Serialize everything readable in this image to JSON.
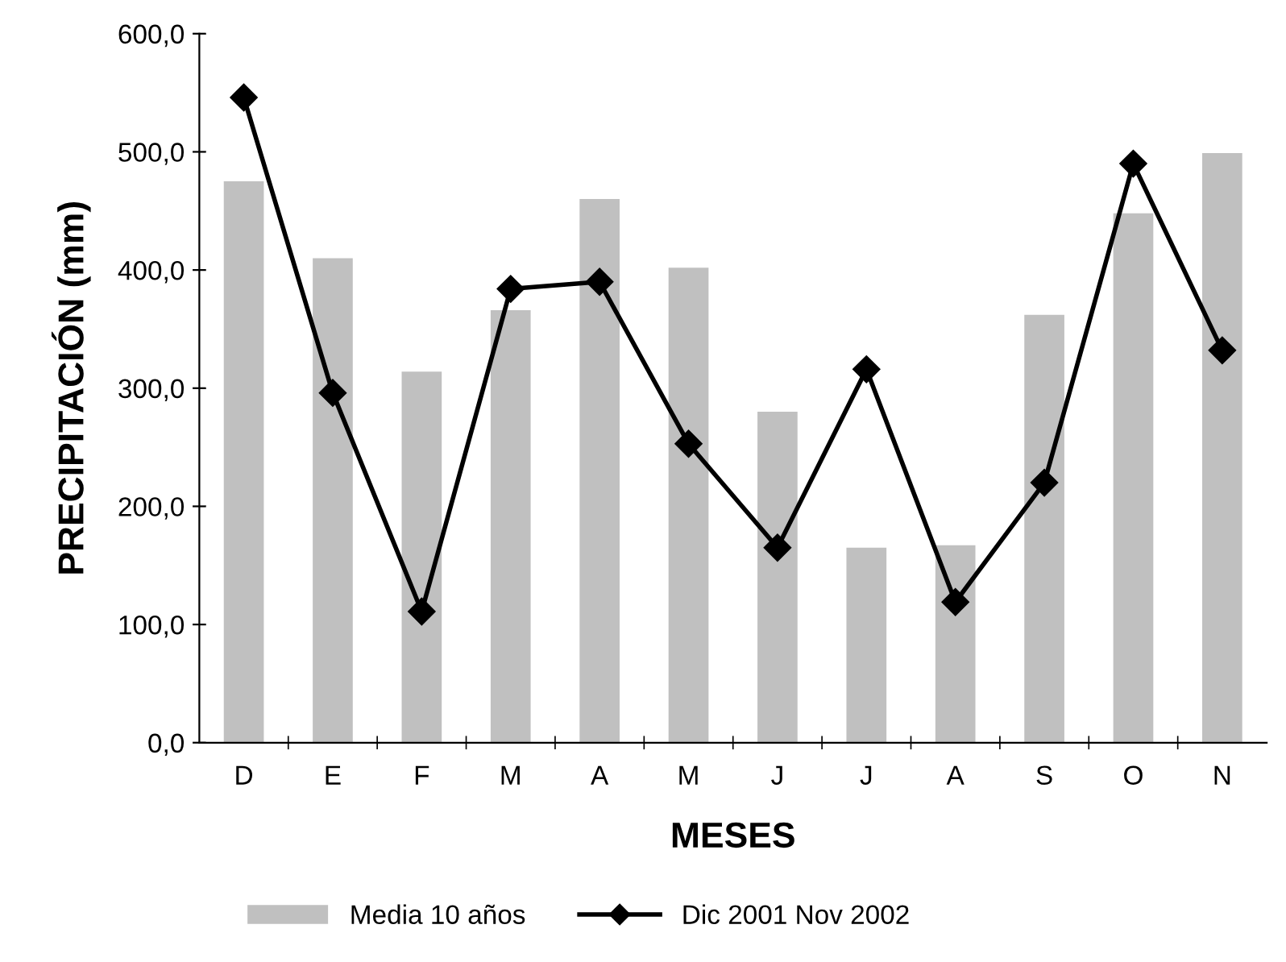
{
  "chart_data": {
    "type": "bar",
    "xlabel": "MESES",
    "ylabel": "PRECIPITACIÓN (mm)",
    "categories": [
      "D",
      "E",
      "F",
      "M",
      "A",
      "M",
      "J",
      "J",
      "A",
      "S",
      "O",
      "N"
    ],
    "series": [
      {
        "name": "Media 10 años",
        "color": "#c0c0c0",
        "values": [
          475,
          410,
          314,
          366,
          460,
          402,
          280,
          165,
          167,
          362,
          448,
          499
        ]
      },
      {
        "name": "Dic 2001 Nov 2002",
        "type": "line",
        "color": "#000000",
        "marker": "diamond",
        "values": [
          546,
          296,
          111,
          384,
          390,
          253,
          165,
          316,
          119,
          220,
          490,
          332
        ]
      }
    ],
    "ylim": [
      0,
      600
    ],
    "yticks": [
      {
        "value": 0,
        "label": "0,0"
      },
      {
        "value": 100,
        "label": "100,0"
      },
      {
        "value": 200,
        "label": "200,0"
      },
      {
        "value": 300,
        "label": "300,0"
      },
      {
        "value": 400,
        "label": "400,0"
      },
      {
        "value": 500,
        "label": "500,0"
      },
      {
        "value": 600,
        "label": "600,0"
      }
    ],
    "grid": false,
    "legend": "bottom"
  }
}
